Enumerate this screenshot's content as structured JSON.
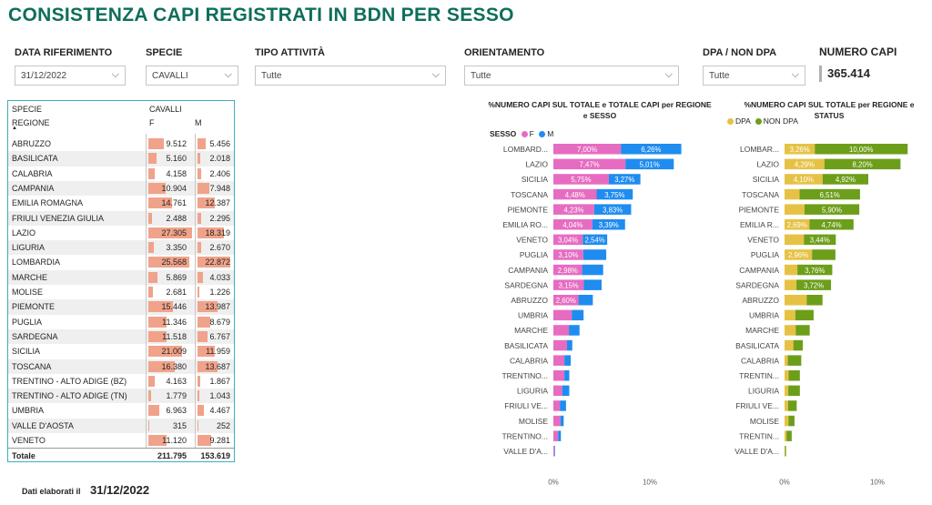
{
  "title": "CONSISTENZA CAPI REGISTRATI IN BDN PER SESSO",
  "slicers": {
    "data_riferimento": {
      "label": "DATA RIFERIMENTO",
      "value": "31/12/2022"
    },
    "specie": {
      "label": "SPECIE",
      "value": "CAVALLI"
    },
    "tipo_attivita": {
      "label": "TIPO ATTIVITÀ",
      "value": "Tutte"
    },
    "orientamento": {
      "label": "ORIENTAMENTO",
      "value": "Tutte"
    },
    "dpa": {
      "label": "DPA / NON DPA",
      "value": "Tutte"
    }
  },
  "kpi": {
    "label": "NUMERO CAPI",
    "value": "365.414"
  },
  "matrix": {
    "col_specie_label": "SPECIE",
    "col_specie_value": "CAVALLI",
    "col_regione_label": "REGIONE",
    "sort_icon": "▲",
    "col_f": "F",
    "col_m": "M",
    "rows": [
      {
        "name": "ABRUZZO",
        "f": "9.512",
        "m": "5.456",
        "fv": 9512,
        "mv": 5456
      },
      {
        "name": "BASILICATA",
        "f": "5.160",
        "m": "2.018",
        "fv": 5160,
        "mv": 2018
      },
      {
        "name": "CALABRIA",
        "f": "4.158",
        "m": "2.406",
        "fv": 4158,
        "mv": 2406
      },
      {
        "name": "CAMPANIA",
        "f": "10.904",
        "m": "7.948",
        "fv": 10904,
        "mv": 7948
      },
      {
        "name": "EMILIA ROMAGNA",
        "f": "14.761",
        "m": "12.387",
        "fv": 14761,
        "mv": 12387
      },
      {
        "name": "FRIULI VENEZIA GIULIA",
        "f": "2.488",
        "m": "2.295",
        "fv": 2488,
        "mv": 2295
      },
      {
        "name": "LAZIO",
        "f": "27.305",
        "m": "18.319",
        "fv": 27305,
        "mv": 18319
      },
      {
        "name": "LIGURIA",
        "f": "3.350",
        "m": "2.670",
        "fv": 3350,
        "mv": 2670
      },
      {
        "name": "LOMBARDIA",
        "f": "25.568",
        "m": "22.872",
        "fv": 25568,
        "mv": 22872
      },
      {
        "name": "MARCHE",
        "f": "5.869",
        "m": "4.033",
        "fv": 5869,
        "mv": 4033
      },
      {
        "name": "MOLISE",
        "f": "2.681",
        "m": "1.226",
        "fv": 2681,
        "mv": 1226
      },
      {
        "name": "PIEMONTE",
        "f": "15.446",
        "m": "13.987",
        "fv": 15446,
        "mv": 13987
      },
      {
        "name": "PUGLIA",
        "f": "11.346",
        "m": "8.679",
        "fv": 11346,
        "mv": 8679
      },
      {
        "name": "SARDEGNA",
        "f": "11.518",
        "m": "6.767",
        "fv": 11518,
        "mv": 6767
      },
      {
        "name": "SICILIA",
        "f": "21.009",
        "m": "11.959",
        "fv": 21009,
        "mv": 11959
      },
      {
        "name": "TOSCANA",
        "f": "16.380",
        "m": "13.687",
        "fv": 16380,
        "mv": 13687
      },
      {
        "name": "TRENTINO - ALTO ADIGE (BZ)",
        "f": "4.163",
        "m": "1.867",
        "fv": 4163,
        "mv": 1867
      },
      {
        "name": "TRENTINO - ALTO ADIGE (TN)",
        "f": "1.779",
        "m": "1.043",
        "fv": 1779,
        "mv": 1043
      },
      {
        "name": "UMBRIA",
        "f": "6.963",
        "m": "4.467",
        "fv": 6963,
        "mv": 4467
      },
      {
        "name": "VALLE D'AOSTA",
        "f": "315",
        "m": "252",
        "fv": 315,
        "mv": 252
      },
      {
        "name": "VENETO",
        "f": "11.120",
        "m": "9.281",
        "fv": 11120,
        "mv": 9281
      }
    ],
    "total_label": "Totale",
    "total_f": "211.795",
    "total_m": "153.619"
  },
  "footer": {
    "label": "Dati elaborati il",
    "value": "31/12/2022"
  },
  "chart_data": [
    {
      "type": "bar",
      "orientation": "horizontal",
      "stacked": true,
      "title": "%NUMERO CAPI SUL TOTALE e TOTALE CAPI per REGIONE e SESSO",
      "legend_title": "SESSO",
      "legend_placement": "top-left",
      "categories": [
        "LOMBARD...",
        "LAZIO",
        "SICILIA",
        "TOSCANA",
        "PIEMONTE",
        "EMILIA RO...",
        "VENETO",
        "PUGLIA",
        "CAMPANIA",
        "SARDEGNA",
        "ABRUZZO",
        "UMBRIA",
        "MARCHE",
        "BASILICATA",
        "CALABRIA",
        "TRENTINO...",
        "LIGURIA",
        "FRIULI VE...",
        "MOLISE",
        "TRENTINO...",
        "VALLE D'A..."
      ],
      "series": [
        {
          "name": "F",
          "color": "#e66cc1",
          "values": [
            7.0,
            7.47,
            5.75,
            4.48,
            4.23,
            4.04,
            3.04,
            3.1,
            2.98,
            3.15,
            2.6,
            1.91,
            1.61,
            1.41,
            1.14,
            1.14,
            0.92,
            0.68,
            0.73,
            0.49,
            0.09
          ]
        },
        {
          "name": "M",
          "color": "#1f8cf0",
          "values": [
            6.26,
            5.01,
            3.27,
            3.75,
            3.83,
            3.39,
            2.54,
            2.38,
            2.18,
            1.85,
            1.49,
            1.22,
            1.1,
            0.55,
            0.66,
            0.51,
            0.73,
            0.63,
            0.34,
            0.29,
            0.07
          ]
        }
      ],
      "data_labels": [
        [
          "7,00%",
          "6,26%"
        ],
        [
          "7,47%",
          "5,01%"
        ],
        [
          "5,75%",
          "3,27%"
        ],
        [
          "4,48%",
          "3,75%"
        ],
        [
          "4,23%",
          "3,83%"
        ],
        [
          "4,04%",
          "3,39%"
        ],
        [
          "3,04%",
          "2,54%"
        ],
        [
          "3,10%",
          ""
        ],
        [
          "2,98%",
          ""
        ],
        [
          "3,15%",
          ""
        ],
        [
          "2,60%",
          ""
        ],
        [
          "",
          ""
        ],
        [
          "",
          ""
        ],
        [
          "",
          ""
        ],
        [
          "",
          ""
        ],
        [
          "",
          ""
        ],
        [
          "",
          ""
        ],
        [
          "",
          ""
        ],
        [
          "",
          ""
        ],
        [
          "",
          ""
        ],
        [
          "",
          ""
        ]
      ],
      "xlim": [
        0,
        14
      ],
      "x_ticks": [
        {
          "value": 0,
          "label": "0%"
        },
        {
          "value": 10,
          "label": "10%"
        }
      ]
    },
    {
      "type": "bar",
      "orientation": "horizontal",
      "stacked": true,
      "title": "%NUMERO CAPI SUL TOTALE per REGIONE e STATUS",
      "legend_placement": "top-left",
      "categories": [
        "LOMBAR...",
        "LAZIO",
        "SICILIA",
        "TOSCANA",
        "PIEMONTE",
        "EMILIA R...",
        "VENETO",
        "PUGLIA",
        "CAMPANIA",
        "SARDEGNA",
        "ABRUZZO",
        "UMBRIA",
        "MARCHE",
        "BASILICATA",
        "CALABRIA",
        "TRENTIN...",
        "LIGURIA",
        "FRIULI VE...",
        "MOLISE",
        "TRENTIN...",
        "VALLE D'A..."
      ],
      "series": [
        {
          "name": "DPA",
          "color": "#e6c244",
          "values": [
            3.26,
            4.29,
            4.1,
            1.62,
            2.15,
            2.69,
            2.08,
            2.96,
            1.38,
            1.28,
            2.38,
            1.16,
            1.2,
            0.95,
            0.35,
            0.44,
            0.4,
            0.38,
            0.42,
            0.21,
            0.05
          ]
        },
        {
          "name": "NON DPA",
          "color": "#6d9e1a",
          "values": [
            10.0,
            8.2,
            4.92,
            6.51,
            5.9,
            4.74,
            3.44,
            2.52,
            3.76,
            3.72,
            1.71,
            1.97,
            1.51,
            1.01,
            1.45,
            1.21,
            1.25,
            0.93,
            0.65,
            0.56,
            0.11
          ]
        }
      ],
      "data_labels": [
        [
          "3,26%",
          "10,00%"
        ],
        [
          "4,29%",
          "8,20%"
        ],
        [
          "4,10%",
          "4,92%"
        ],
        [
          "",
          "6,51%"
        ],
        [
          "",
          "5,90%"
        ],
        [
          "2,69%",
          "4,74%"
        ],
        [
          "",
          "3,44%"
        ],
        [
          "2,96%",
          ""
        ],
        [
          "",
          "3,76%"
        ],
        [
          "",
          "3,72%"
        ],
        [
          "",
          ""
        ],
        [
          "",
          ""
        ],
        [
          "",
          ""
        ],
        [
          "",
          ""
        ],
        [
          "",
          ""
        ],
        [
          "",
          ""
        ],
        [
          "",
          ""
        ],
        [
          "",
          ""
        ],
        [
          "",
          ""
        ],
        [
          "",
          ""
        ],
        [
          "",
          ""
        ]
      ],
      "xlim": [
        0,
        14
      ],
      "x_ticks": [
        {
          "value": 0,
          "label": "0%"
        },
        {
          "value": 10,
          "label": "10%"
        }
      ]
    }
  ]
}
